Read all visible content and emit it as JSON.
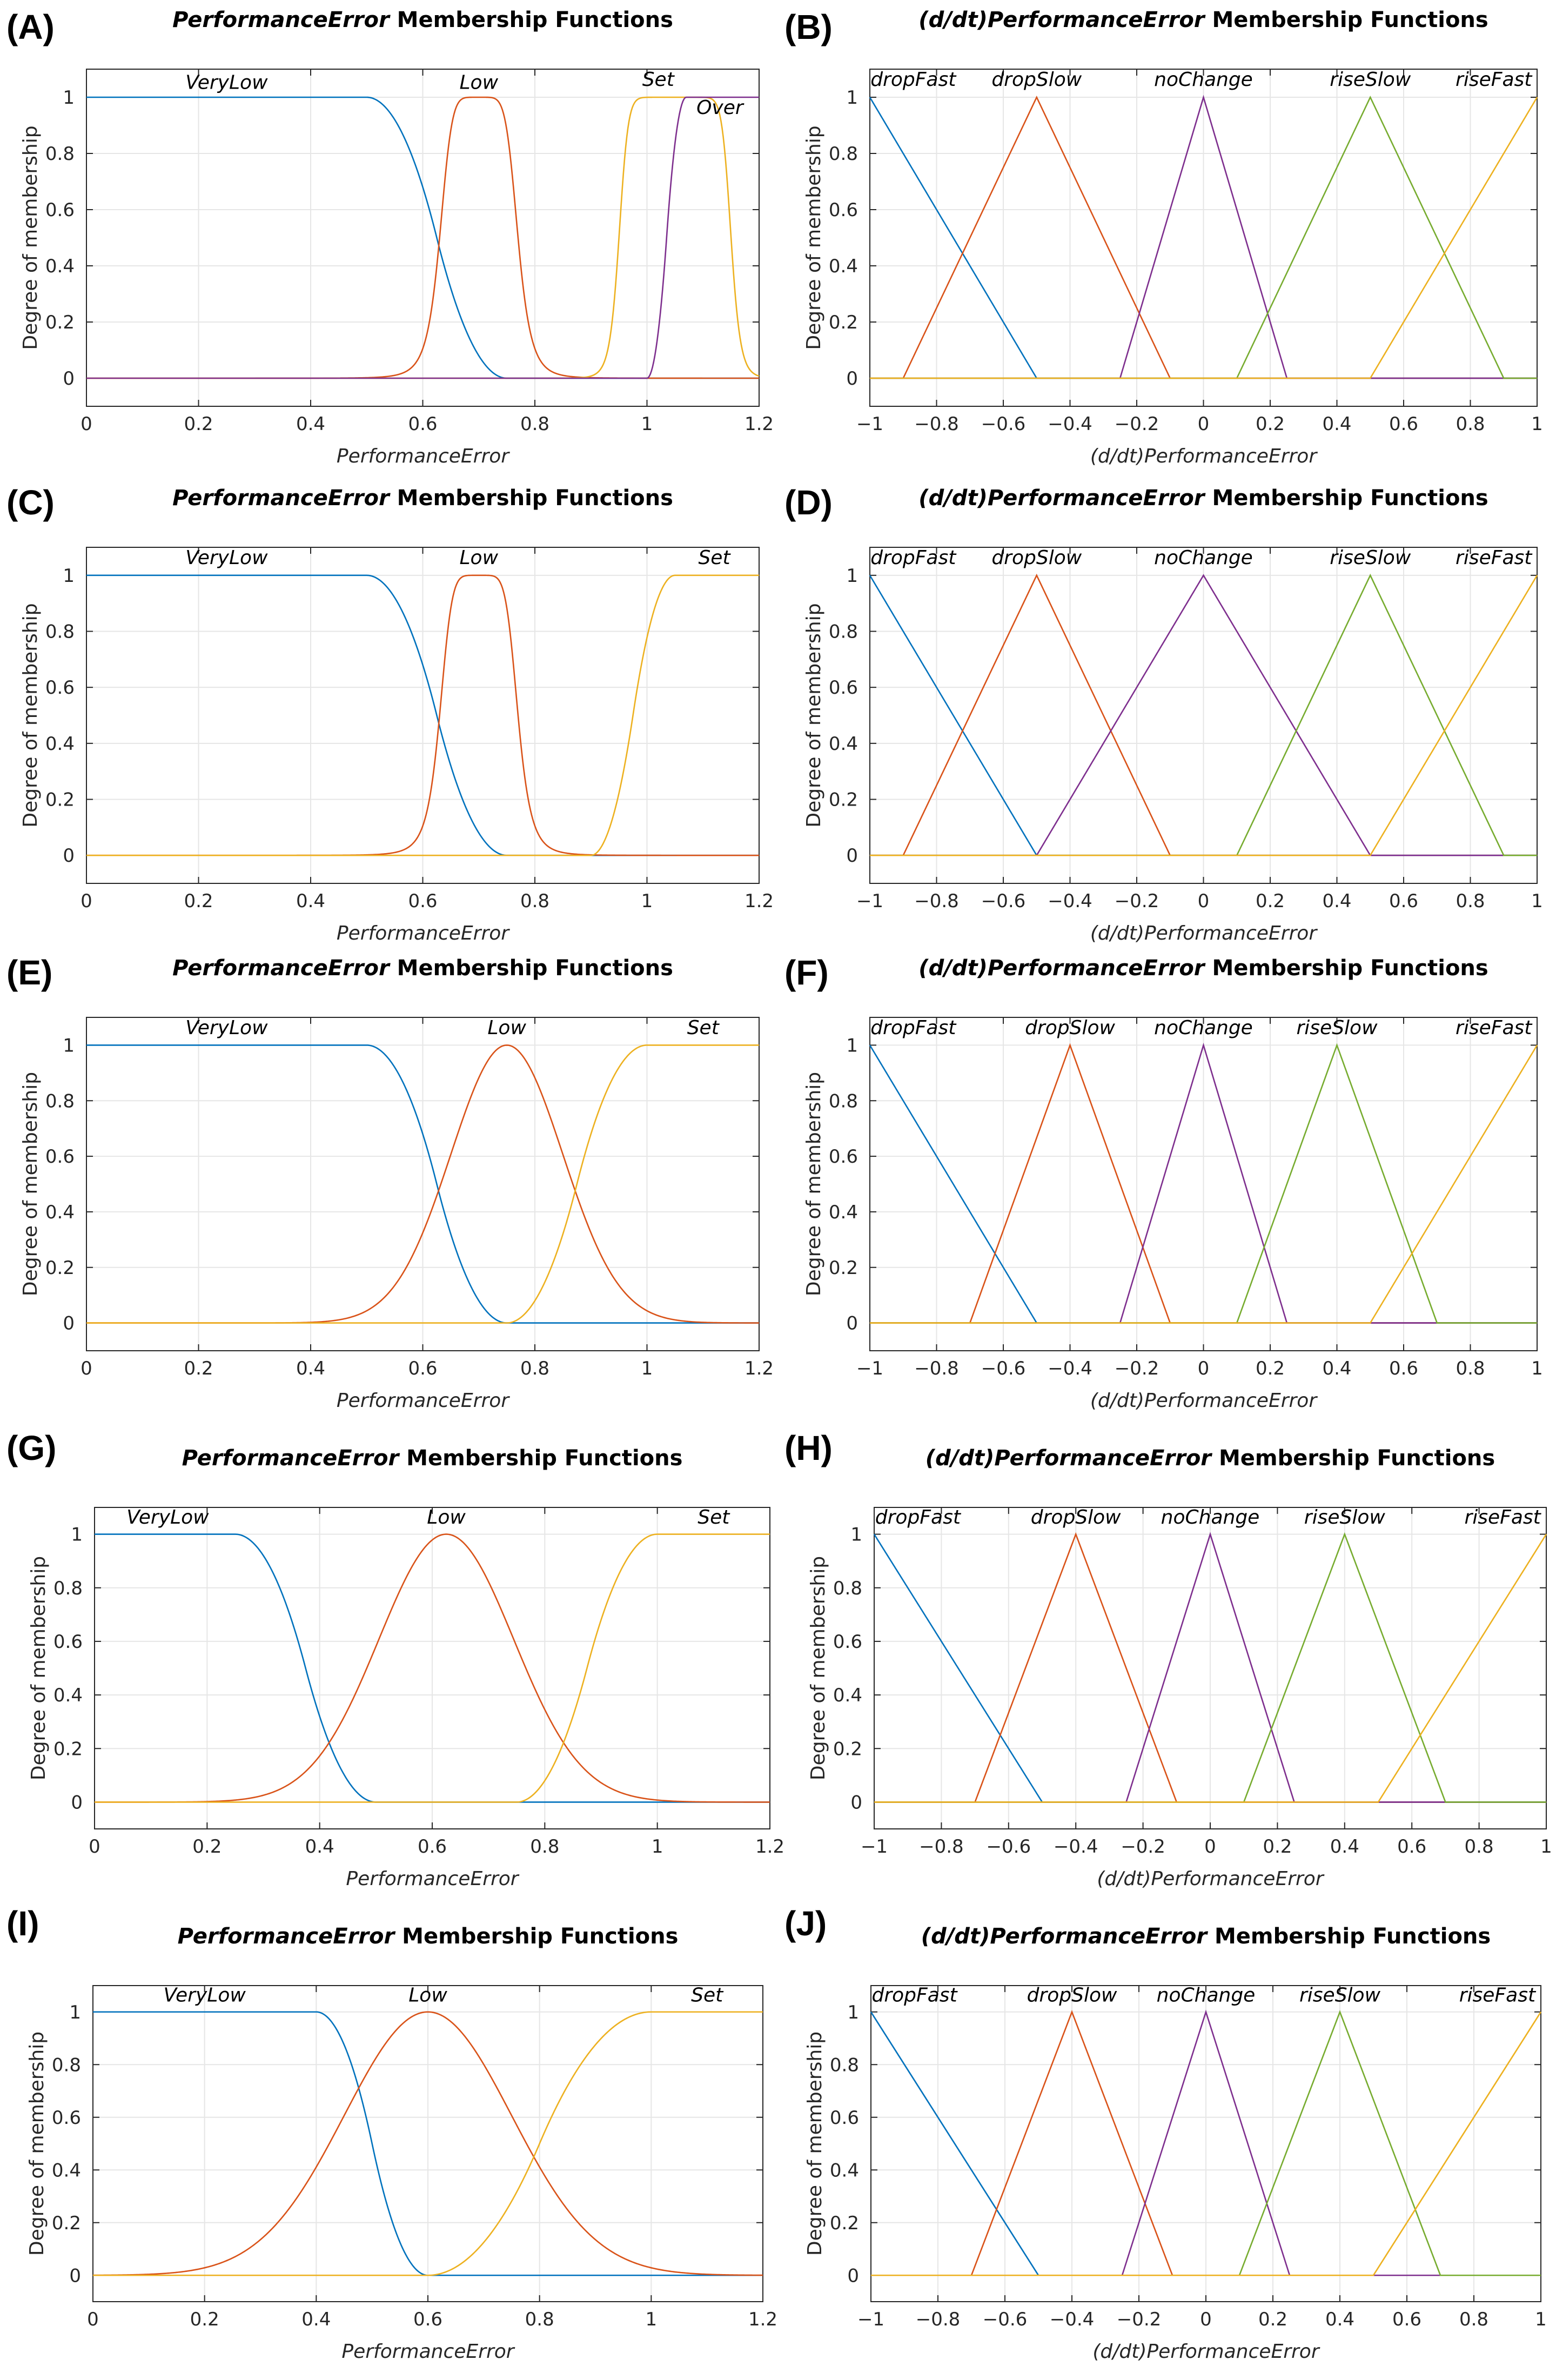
{
  "figure": {
    "background": "#ffffff"
  },
  "colors": {
    "c1": "#0072BD",
    "c2": "#D95319",
    "c3": "#EDB120",
    "c4": "#7E2F8E",
    "c5": "#77AC30",
    "grid": "#e6e6e6",
    "axis": "#262626"
  },
  "chart_data": [
    {
      "type": "line",
      "panel": "(A)",
      "title": "PerformanceError Membership Functions",
      "title_italic_part": "PerformanceError",
      "title_rest": " Membership Functions",
      "xlabel": "PerformanceError",
      "ylabel": "Degree of membership",
      "xlim": [
        0,
        1.2
      ],
      "ylim": [
        -0.1,
        1.1
      ],
      "xticks": [
        0,
        0.2,
        0.4,
        0.6,
        0.8,
        1,
        1.2
      ],
      "xtick_labels": [
        "0",
        "0.2",
        "0.4",
        "0.6",
        "0.8",
        "1",
        "1.2"
      ],
      "yticks": [
        0,
        0.2,
        0.4,
        0.6,
        0.8,
        1
      ],
      "ytick_labels": [
        "0",
        "0.2",
        "0.4",
        "0.6",
        "0.8",
        "1"
      ],
      "series": [
        {
          "name": "VeryLow",
          "mf": "zmf",
          "params": [
            0.5,
            0.75
          ],
          "color": "c1",
          "label_x": 0.25,
          "label_y": 1.03
        },
        {
          "name": "Low",
          "mf": "gbellmf",
          "params": [
            0.07,
            3,
            0.7
          ],
          "color": "c2",
          "label_x": 0.7,
          "label_y": 1.03
        },
        {
          "name": "Set",
          "mf": "gbellmf",
          "params": [
            0.1,
            6,
            1.05
          ],
          "color": "c3",
          "label_x": 1.02,
          "label_y": 1.04
        },
        {
          "name": "Over",
          "mf": "smf",
          "params": [
            1.0,
            1.07
          ],
          "color": "c4",
          "label_x": 1.13,
          "label_y": 0.94
        }
      ]
    },
    {
      "type": "line",
      "panel": "(B)",
      "title": "(d/dt)PerformanceError Membership Functions",
      "title_italic_part": "(d/dt)PerformanceError",
      "title_rest": " Membership Functions",
      "xlabel": "(d/dt)PerformanceError",
      "ylabel": "Degree of membership",
      "xlim": [
        -1,
        1
      ],
      "ylim": [
        -0.1,
        1.1
      ],
      "xticks": [
        -1,
        -0.8,
        -0.6,
        -0.4,
        -0.2,
        0,
        0.2,
        0.4,
        0.6,
        0.8,
        1
      ],
      "xtick_labels": [
        "−1",
        "−0.8",
        "−0.6",
        "−0.4",
        "−0.2",
        "0",
        "0.2",
        "0.4",
        "0.6",
        "0.8",
        "1"
      ],
      "yticks": [
        0,
        0.2,
        0.4,
        0.6,
        0.8,
        1
      ],
      "ytick_labels": [
        "0",
        "0.2",
        "0.4",
        "0.6",
        "0.8",
        "1"
      ],
      "series": [
        {
          "name": "dropFast",
          "mf": "trimf",
          "params": [
            -1.5,
            -1,
            -0.5
          ],
          "color": "c1",
          "label_x": -0.87,
          "label_y": 1.04
        },
        {
          "name": "dropSlow",
          "mf": "trimf",
          "params": [
            -0.9,
            -0.5,
            -0.1
          ],
          "color": "c2",
          "label_x": -0.5,
          "label_y": 1.04
        },
        {
          "name": "noChange",
          "mf": "trimf",
          "params": [
            -0.25,
            0,
            0.25
          ],
          "color": "c4",
          "label_x": 0,
          "label_y": 1.04
        },
        {
          "name": "riseSlow",
          "mf": "trimf",
          "params": [
            0.1,
            0.5,
            0.9
          ],
          "color": "c5",
          "label_x": 0.5,
          "label_y": 1.04
        },
        {
          "name": "riseFast",
          "mf": "trimf",
          "params": [
            0.5,
            1,
            1.5
          ],
          "color": "c3",
          "label_x": 0.87,
          "label_y": 1.04
        }
      ]
    },
    {
      "type": "line",
      "panel": "(C)",
      "title": "PerformanceError Membership Functions",
      "title_italic_part": "PerformanceError",
      "title_rest": " Membership Functions",
      "xlabel": "PerformanceError",
      "ylabel": "Degree of membership",
      "xlim": [
        0,
        1.2
      ],
      "ylim": [
        -0.1,
        1.1
      ],
      "xticks": [
        0,
        0.2,
        0.4,
        0.6,
        0.8,
        1,
        1.2
      ],
      "xtick_labels": [
        "0",
        "0.2",
        "0.4",
        "0.6",
        "0.8",
        "1",
        "1.2"
      ],
      "yticks": [
        0,
        0.2,
        0.4,
        0.6,
        0.8,
        1
      ],
      "ytick_labels": [
        "0",
        "0.2",
        "0.4",
        "0.6",
        "0.8",
        "1"
      ],
      "series": [
        {
          "name": "VeryLow",
          "mf": "zmf",
          "params": [
            0.5,
            0.75
          ],
          "color": "c1",
          "label_x": 0.25,
          "label_y": 1.04
        },
        {
          "name": "Low",
          "mf": "gbellmf",
          "params": [
            0.07,
            3,
            0.7
          ],
          "color": "c2",
          "label_x": 0.7,
          "label_y": 1.04
        },
        {
          "name": "Set",
          "mf": "smf",
          "params": [
            0.9,
            1.05
          ],
          "color": "c3",
          "label_x": 1.12,
          "label_y": 1.04
        }
      ]
    },
    {
      "type": "line",
      "panel": "(D)",
      "title": "(d/dt)PerformanceError Membership Functions",
      "title_italic_part": "(d/dt)PerformanceError",
      "title_rest": " Membership Functions",
      "xlabel": "(d/dt)PerformanceError",
      "ylabel": "Degree of membership",
      "xlim": [
        -1,
        1
      ],
      "ylim": [
        -0.1,
        1.1
      ],
      "xticks": [
        -1,
        -0.8,
        -0.6,
        -0.4,
        -0.2,
        0,
        0.2,
        0.4,
        0.6,
        0.8,
        1
      ],
      "xtick_labels": [
        "−1",
        "−0.8",
        "−0.6",
        "−0.4",
        "−0.2",
        "0",
        "0.2",
        "0.4",
        "0.6",
        "0.8",
        "1"
      ],
      "yticks": [
        0,
        0.2,
        0.4,
        0.6,
        0.8,
        1
      ],
      "ytick_labels": [
        "0",
        "0.2",
        "0.4",
        "0.6",
        "0.8",
        "1"
      ],
      "series": [
        {
          "name": "dropFast",
          "mf": "trimf",
          "params": [
            -1.5,
            -1,
            -0.5
          ],
          "color": "c1",
          "label_x": -0.87,
          "label_y": 1.04
        },
        {
          "name": "dropSlow",
          "mf": "trimf",
          "params": [
            -0.9,
            -0.5,
            -0.1
          ],
          "color": "c2",
          "label_x": -0.5,
          "label_y": 1.04
        },
        {
          "name": "noChange",
          "mf": "trimf",
          "params": [
            -0.5,
            0,
            0.5
          ],
          "color": "c4",
          "label_x": 0,
          "label_y": 1.04
        },
        {
          "name": "riseSlow",
          "mf": "trimf",
          "params": [
            0.1,
            0.5,
            0.9
          ],
          "color": "c5",
          "label_x": 0.5,
          "label_y": 1.04
        },
        {
          "name": "riseFast",
          "mf": "trimf",
          "params": [
            0.5,
            1,
            1.5
          ],
          "color": "c3",
          "label_x": 0.87,
          "label_y": 1.04
        }
      ]
    },
    {
      "type": "line",
      "panel": "(E)",
      "title": "PerformanceError Membership Functions",
      "title_italic_part": "PerformanceError",
      "title_rest": " Membership Functions",
      "xlabel": "PerformanceError",
      "ylabel": "Degree of membership",
      "xlim": [
        0,
        1.2
      ],
      "ylim": [
        -0.1,
        1.1
      ],
      "xticks": [
        0,
        0.2,
        0.4,
        0.6,
        0.8,
        1,
        1.2
      ],
      "xtick_labels": [
        "0",
        "0.2",
        "0.4",
        "0.6",
        "0.8",
        "1",
        "1.2"
      ],
      "yticks": [
        0,
        0.2,
        0.4,
        0.6,
        0.8,
        1
      ],
      "ytick_labels": [
        "0",
        "0.2",
        "0.4",
        "0.6",
        "0.8",
        "1"
      ],
      "series": [
        {
          "name": "VeryLow",
          "mf": "zmf",
          "params": [
            0.5,
            0.75
          ],
          "color": "c1",
          "label_x": 0.25,
          "label_y": 1.04
        },
        {
          "name": "Low",
          "mf": "gaussmf",
          "params": [
            0.1,
            0.75
          ],
          "color": "c2",
          "label_x": 0.75,
          "label_y": 1.04
        },
        {
          "name": "Set",
          "mf": "smf",
          "params": [
            0.75,
            1.0
          ],
          "color": "c3",
          "label_x": 1.1,
          "label_y": 1.04
        }
      ]
    },
    {
      "type": "line",
      "panel": "(F)",
      "title": "(d/dt)PerformanceError Membership Functions",
      "title_italic_part": "(d/dt)PerformanceError",
      "title_rest": " Membership Functions",
      "xlabel": "(d/dt)PerformanceError",
      "ylabel": "Degree of membership",
      "xlim": [
        -1,
        1
      ],
      "ylim": [
        -0.1,
        1.1
      ],
      "xticks": [
        -1,
        -0.8,
        -0.6,
        -0.4,
        -0.2,
        0,
        0.2,
        0.4,
        0.6,
        0.8,
        1
      ],
      "xtick_labels": [
        "−1",
        "−0.8",
        "−0.6",
        "−0.4",
        "−0.2",
        "0",
        "0.2",
        "0.4",
        "0.6",
        "0.8",
        "1"
      ],
      "yticks": [
        0,
        0.2,
        0.4,
        0.6,
        0.8,
        1
      ],
      "ytick_labels": [
        "0",
        "0.2",
        "0.4",
        "0.6",
        "0.8",
        "1"
      ],
      "series": [
        {
          "name": "dropFast",
          "mf": "trimf",
          "params": [
            -1.5,
            -1,
            -0.5
          ],
          "color": "c1",
          "label_x": -0.87,
          "label_y": 1.04
        },
        {
          "name": "dropSlow",
          "mf": "trimf",
          "params": [
            -0.7,
            -0.4,
            -0.1
          ],
          "color": "c2",
          "label_x": -0.4,
          "label_y": 1.04
        },
        {
          "name": "noChange",
          "mf": "trimf",
          "params": [
            -0.25,
            0,
            0.25
          ],
          "color": "c4",
          "label_x": 0,
          "label_y": 1.04
        },
        {
          "name": "riseSlow",
          "mf": "trimf",
          "params": [
            0.1,
            0.4,
            0.7
          ],
          "color": "c5",
          "label_x": 0.4,
          "label_y": 1.04
        },
        {
          "name": "riseFast",
          "mf": "trimf",
          "params": [
            0.5,
            1,
            1.5
          ],
          "color": "c3",
          "label_x": 0.87,
          "label_y": 1.04
        }
      ]
    },
    {
      "type": "line",
      "panel": "(G)",
      "title": "PerformanceError Membership Functions",
      "title_italic_part": "PerformanceError",
      "title_rest": " Membership Functions",
      "xlabel": "PerformanceError",
      "ylabel": "Degree of membership",
      "xlim": [
        0,
        1.2
      ],
      "ylim": [
        -0.1,
        1.1
      ],
      "xticks": [
        0,
        0.2,
        0.4,
        0.6,
        0.8,
        1,
        1.2
      ],
      "xtick_labels": [
        "0",
        "0.2",
        "0.4",
        "0.6",
        "0.8",
        "1",
        "1.2"
      ],
      "yticks": [
        0,
        0.2,
        0.4,
        0.6,
        0.8,
        1
      ],
      "ytick_labels": [
        "0",
        "0.2",
        "0.4",
        "0.6",
        "0.8",
        "1"
      ],
      "series": [
        {
          "name": "VeryLow",
          "mf": "zmf",
          "params": [
            0.25,
            0.5
          ],
          "color": "c1",
          "label_x": 0.13,
          "label_y": 1.04
        },
        {
          "name": "Low",
          "mf": "gaussmf",
          "params": [
            0.12,
            0.625
          ],
          "color": "c2",
          "label_x": 0.625,
          "label_y": 1.04
        },
        {
          "name": "Set",
          "mf": "smf",
          "params": [
            0.75,
            1.0
          ],
          "color": "c3",
          "label_x": 1.1,
          "label_y": 1.04
        }
      ]
    },
    {
      "type": "line",
      "panel": "(H)",
      "title": "(d/dt)PerformanceError Membership Functions",
      "title_italic_part": "(d/dt)PerformanceError",
      "title_rest": " Membership Functions",
      "xlabel": "(d/dt)PerformanceError",
      "ylabel": "Degree of membership",
      "xlim": [
        -1,
        1
      ],
      "ylim": [
        -0.1,
        1.1
      ],
      "xticks": [
        -1,
        -0.8,
        -0.6,
        -0.4,
        -0.2,
        0,
        0.2,
        0.4,
        0.6,
        0.8,
        1
      ],
      "xtick_labels": [
        "−1",
        "−0.8",
        "−0.6",
        "−0.4",
        "−0.2",
        "0",
        "0.2",
        "0.4",
        "0.6",
        "0.8",
        "1"
      ],
      "yticks": [
        0,
        0.2,
        0.4,
        0.6,
        0.8,
        1
      ],
      "ytick_labels": [
        "0",
        "0.2",
        "0.4",
        "0.6",
        "0.8",
        "1"
      ],
      "series": [
        {
          "name": "dropFast",
          "mf": "trimf",
          "params": [
            -1.5,
            -1,
            -0.5
          ],
          "color": "c1",
          "label_x": -0.87,
          "label_y": 1.04
        },
        {
          "name": "dropSlow",
          "mf": "trimf",
          "params": [
            -0.7,
            -0.4,
            -0.1
          ],
          "color": "c2",
          "label_x": -0.4,
          "label_y": 1.04
        },
        {
          "name": "noChange",
          "mf": "trimf",
          "params": [
            -0.25,
            0,
            0.25
          ],
          "color": "c4",
          "label_x": 0,
          "label_y": 1.04
        },
        {
          "name": "riseSlow",
          "mf": "trimf",
          "params": [
            0.1,
            0.4,
            0.7
          ],
          "color": "c5",
          "label_x": 0.4,
          "label_y": 1.04
        },
        {
          "name": "riseFast",
          "mf": "trimf",
          "params": [
            0.5,
            1,
            1.5
          ],
          "color": "c3",
          "label_x": 0.87,
          "label_y": 1.04
        }
      ]
    },
    {
      "type": "line",
      "panel": "(I)",
      "title": "PerformanceError Membership Functions",
      "title_italic_part": "PerformanceError",
      "title_rest": " Membership Functions",
      "xlabel": "PerformanceError",
      "ylabel": "Degree of membership",
      "xlim": [
        0,
        1.2
      ],
      "ylim": [
        -0.1,
        1.1
      ],
      "xticks": [
        0,
        0.2,
        0.4,
        0.6,
        0.8,
        1,
        1.2
      ],
      "xtick_labels": [
        "0",
        "0.2",
        "0.4",
        "0.6",
        "0.8",
        "1",
        "1.2"
      ],
      "yticks": [
        0,
        0.2,
        0.4,
        0.6,
        0.8,
        1
      ],
      "ytick_labels": [
        "0",
        "0.2",
        "0.4",
        "0.6",
        "0.8",
        "1"
      ],
      "series": [
        {
          "name": "VeryLow",
          "mf": "zmf",
          "params": [
            0.4,
            0.6
          ],
          "color": "c1",
          "label_x": 0.2,
          "label_y": 1.04
        },
        {
          "name": "Low",
          "mf": "gaussmf",
          "params": [
            0.15,
            0.6
          ],
          "color": "c2",
          "label_x": 0.6,
          "label_y": 1.04
        },
        {
          "name": "Set",
          "mf": "smf",
          "params": [
            0.6,
            1.0
          ],
          "color": "c3",
          "label_x": 1.1,
          "label_y": 1.04
        }
      ]
    },
    {
      "type": "line",
      "panel": "(J)",
      "title": "(d/dt)PerformanceError Membership Functions",
      "title_italic_part": "(d/dt)PerformanceError",
      "title_rest": " Membership Functions",
      "xlabel": "(d/dt)PerformanceError",
      "ylabel": "Degree of membership",
      "xlim": [
        -1,
        1
      ],
      "ylim": [
        -0.1,
        1.1
      ],
      "xticks": [
        -1,
        -0.8,
        -0.6,
        -0.4,
        -0.2,
        0,
        0.2,
        0.4,
        0.6,
        0.8,
        1
      ],
      "xtick_labels": [
        "−1",
        "−0.8",
        "−0.6",
        "−0.4",
        "−0.2",
        "0",
        "0.2",
        "0.4",
        "0.6",
        "0.8",
        "1"
      ],
      "yticks": [
        0,
        0.2,
        0.4,
        0.6,
        0.8,
        1
      ],
      "ytick_labels": [
        "0",
        "0.2",
        "0.4",
        "0.6",
        "0.8",
        "1"
      ],
      "series": [
        {
          "name": "dropFast",
          "mf": "trimf",
          "params": [
            -1.5,
            -1,
            -0.5
          ],
          "color": "c1",
          "label_x": -0.87,
          "label_y": 1.04
        },
        {
          "name": "dropSlow",
          "mf": "trimf",
          "params": [
            -0.7,
            -0.4,
            -0.1
          ],
          "color": "c2",
          "label_x": -0.4,
          "label_y": 1.04
        },
        {
          "name": "noChange",
          "mf": "trimf",
          "params": [
            -0.25,
            0,
            0.25
          ],
          "color": "c4",
          "label_x": 0,
          "label_y": 1.04
        },
        {
          "name": "riseSlow",
          "mf": "trimf",
          "params": [
            0.1,
            0.4,
            0.7
          ],
          "color": "c5",
          "label_x": 0.4,
          "label_y": 1.04
        },
        {
          "name": "riseFast",
          "mf": "trimf",
          "params": [
            0.5,
            1,
            1.5
          ],
          "color": "c3",
          "label_x": 0.87,
          "label_y": 1.04
        }
      ]
    }
  ]
}
